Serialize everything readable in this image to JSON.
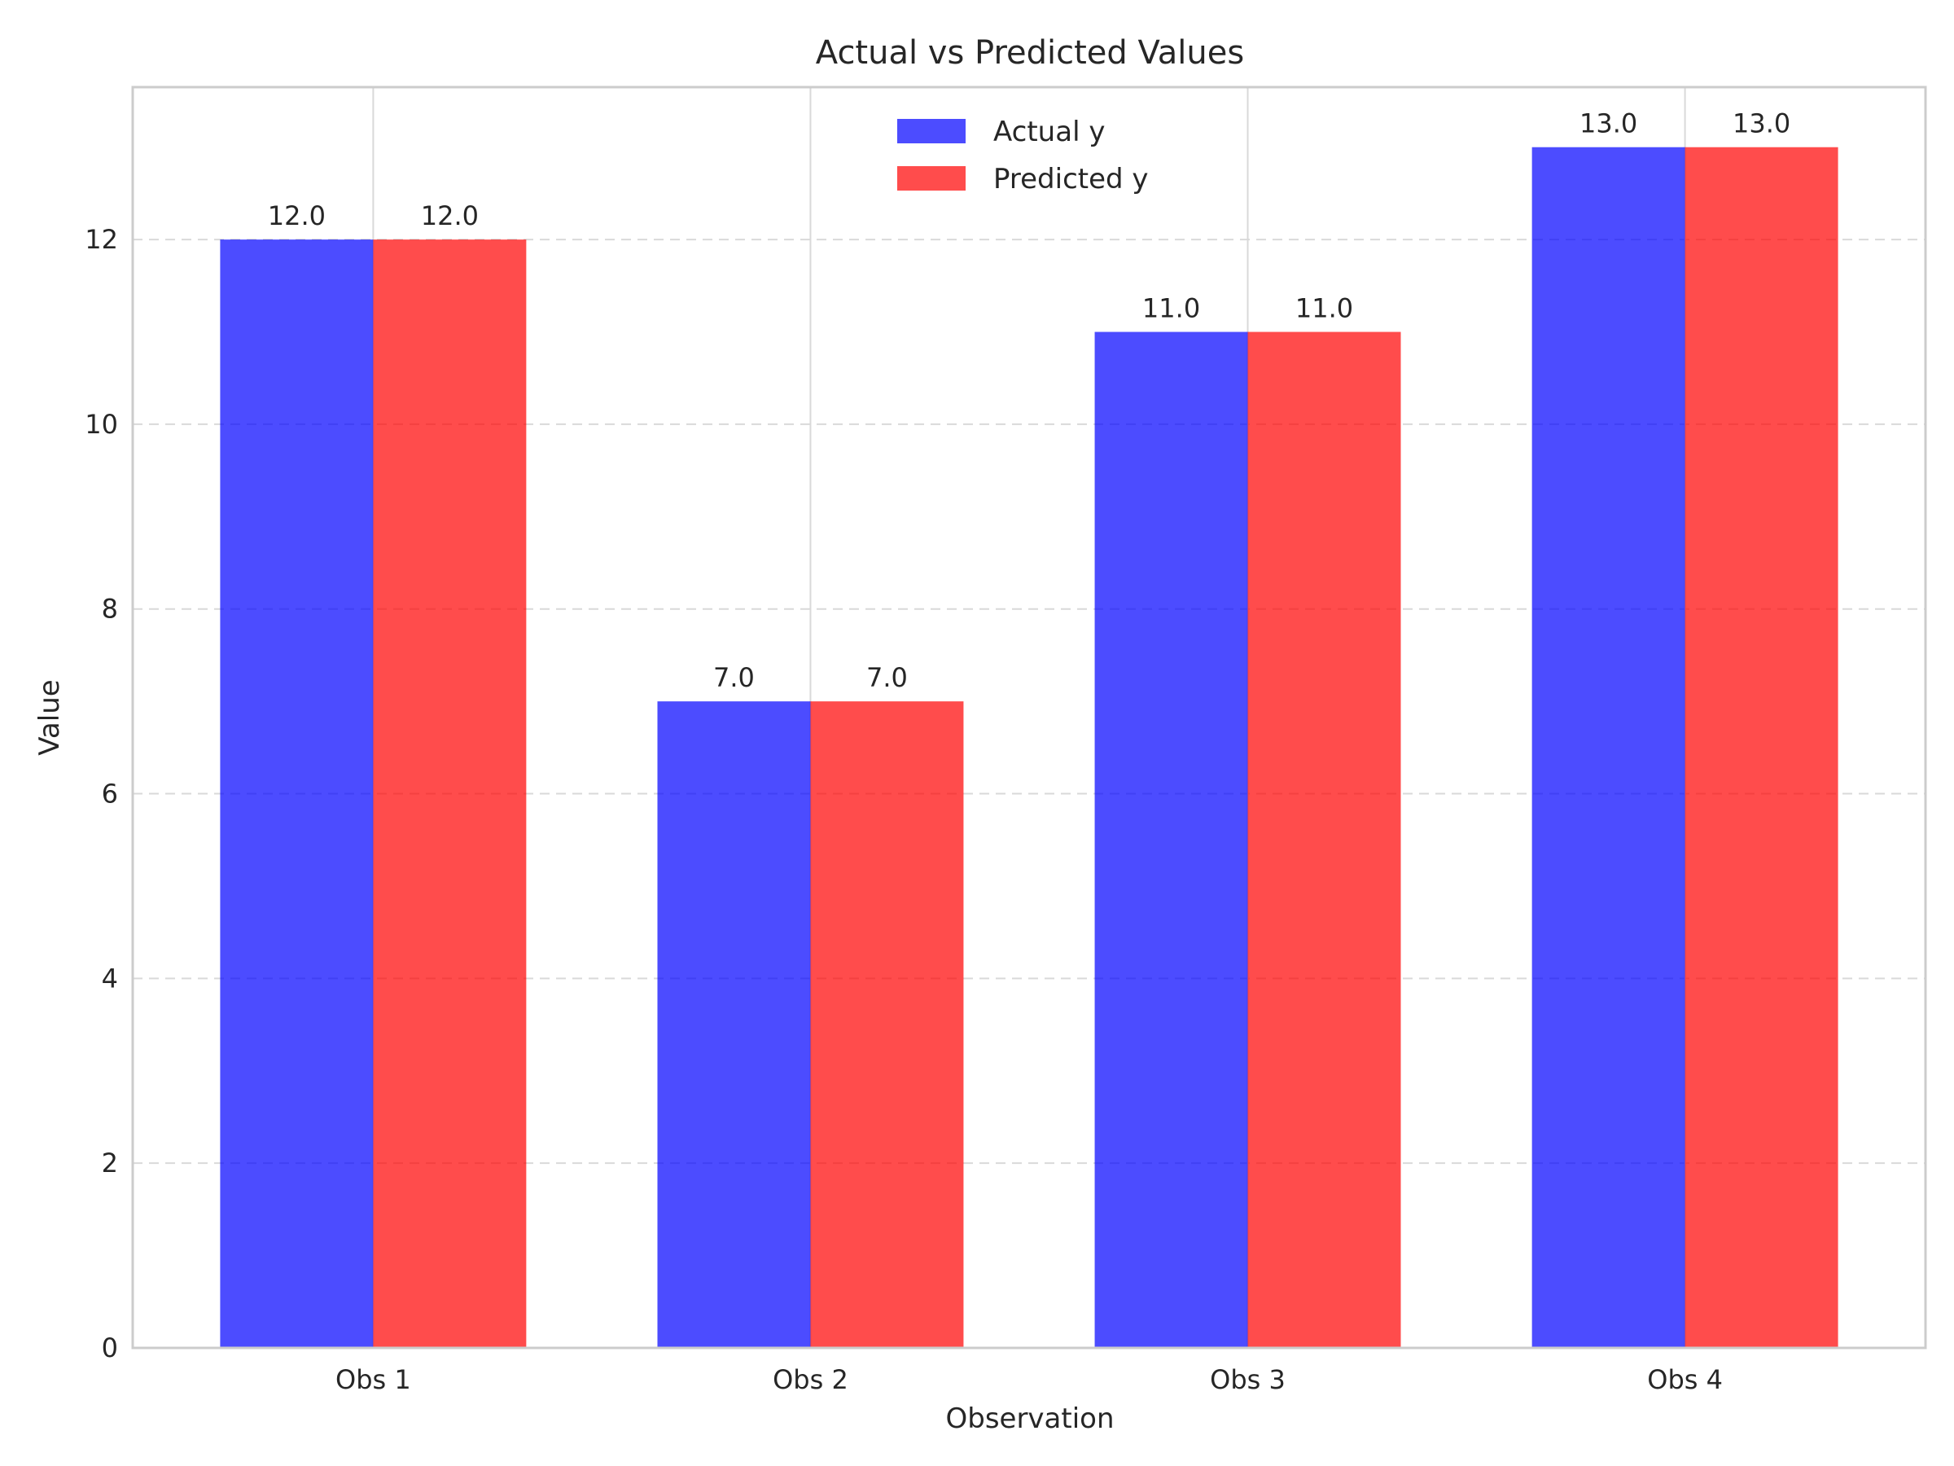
{
  "chart_data": {
    "type": "bar",
    "title": "Actual vs Predicted Values",
    "xlabel": "Observation",
    "ylabel": "Value",
    "categories": [
      "Obs 1",
      "Obs 2",
      "Obs 3",
      "Obs 4"
    ],
    "series": [
      {
        "name": "Actual y",
        "values": [
          12.0,
          7.0,
          11.0,
          13.0
        ],
        "color": "#0000ff",
        "label_text": [
          "12.0",
          "7.0",
          "11.0",
          "13.0"
        ]
      },
      {
        "name": "Predicted y",
        "values": [
          12.0,
          7.0,
          11.0,
          13.0
        ],
        "color": "#ff0000",
        "label_text": [
          "12.0",
          "7.0",
          "11.0",
          "13.0"
        ]
      }
    ],
    "ylim": [
      0,
      13.65
    ],
    "yticks": [
      0,
      2,
      4,
      6,
      8,
      10,
      12
    ],
    "ytick_labels": [
      "0",
      "2",
      "4",
      "6",
      "8",
      "10",
      "12"
    ],
    "bar_opacity": 0.7,
    "grid": true,
    "legend_position": "top-center",
    "colors": {
      "frame": "#cccccc",
      "grid": "#d9d9d9",
      "text": "#262626"
    }
  }
}
